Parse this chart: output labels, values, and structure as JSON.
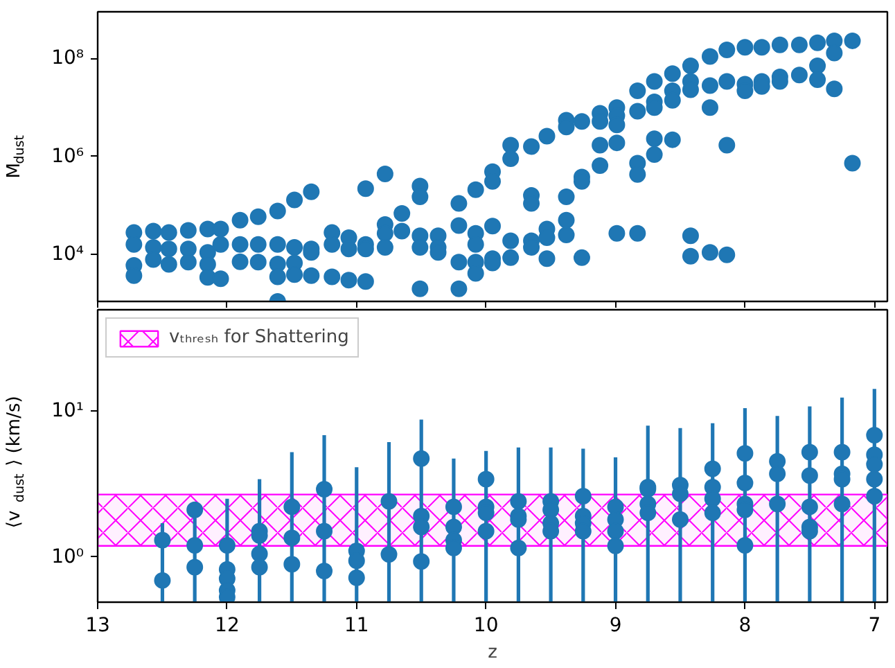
{
  "chart_data": [
    {
      "type": "scatter",
      "ylabel": "M$_{dust}$",
      "log": "y",
      "marker": "circle",
      "grid": false,
      "tick_labels": "y",
      "xlim": [
        13,
        6.9
      ],
      "xticks": [
        13,
        12,
        11,
        10,
        9,
        8,
        7
      ],
      "ylim": [
        1100,
        900000000
      ],
      "yticks": [
        {
          "value": 10000,
          "label": "10⁴"
        },
        {
          "value": 1000000,
          "label": "10⁶"
        },
        {
          "value": 100000000,
          "label": "10⁸"
        }
      ],
      "series": [
        {
          "color": "#1f77b4",
          "x": [
            12.72,
            12.72,
            12.72,
            12.72,
            12.57,
            12.57,
            12.57,
            12.45,
            12.45,
            12.45,
            12.3,
            12.3,
            12.3,
            12.15,
            12.15,
            12.15,
            12.15,
            12.05,
            12.05,
            12.05,
            11.9,
            11.9,
            11.9,
            11.76,
            11.76,
            11.76,
            11.61,
            11.61,
            11.61,
            11.61,
            11.61,
            11.48,
            11.48,
            11.48,
            11.48,
            11.35,
            11.35,
            11.35,
            11.35,
            11.19,
            11.19,
            11.19,
            11.06,
            11.06,
            11.06,
            10.93,
            10.93,
            10.93,
            10.93,
            10.78,
            10.78,
            10.78,
            10.78,
            10.65,
            10.65,
            10.51,
            10.51,
            10.51,
            10.51,
            10.51,
            10.37,
            10.37,
            10.37,
            10.21,
            10.21,
            10.21,
            10.21,
            10.08,
            10.08,
            10.08,
            10.08,
            10.08,
            9.95,
            9.95,
            9.95,
            9.95,
            9.95,
            9.81,
            9.81,
            9.81,
            9.81,
            9.65,
            9.65,
            9.65,
            9.65,
            9.65,
            9.53,
            9.53,
            9.53,
            9.53,
            9.38,
            9.38,
            9.38,
            9.38,
            9.38,
            9.26,
            9.26,
            9.26,
            9.26,
            9.12,
            9.12,
            9.12,
            9.12,
            8.99,
            8.99,
            8.99,
            8.99,
            8.99,
            8.83,
            8.83,
            8.83,
            8.83,
            8.83,
            8.7,
            8.7,
            8.7,
            8.7,
            8.7,
            8.56,
            8.56,
            8.56,
            8.56,
            8.42,
            8.42,
            8.42,
            8.42,
            8.42,
            8.27,
            8.27,
            8.27,
            8.27,
            8.14,
            8.14,
            8.14,
            8.14,
            8.0,
            8.0,
            8.0,
            7.87,
            7.87,
            7.87,
            7.73,
            7.73,
            7.73,
            7.58,
            7.58,
            7.44,
            7.44,
            7.44,
            7.31,
            7.31,
            7.31,
            7.17,
            7.17
          ],
          "values": [
            28000,
            16000,
            6000,
            3700,
            30000,
            14000,
            7900,
            28000,
            13000,
            6300,
            31000,
            13000,
            7000,
            33000,
            11000,
            6300,
            3400,
            33000,
            16000,
            3200,
            50000,
            16000,
            7100,
            59000,
            16000,
            7000,
            77000,
            16000,
            6400,
            3500,
            1100,
            130000,
            14000,
            6700,
            3900,
            190000,
            13000,
            11000,
            3700,
            28000,
            16000,
            3500,
            22000,
            13000,
            3000,
            220000,
            16000,
            13000,
            2800,
            440000,
            41000,
            27000,
            14000,
            69000,
            30000,
            250000,
            150000,
            24000,
            14000,
            2000,
            24000,
            14000,
            11000,
            110000,
            39000,
            7000,
            2000,
            210000,
            27000,
            16000,
            7000,
            4100,
            490000,
            310000,
            38000,
            8200,
            6700,
            1700000,
            900000,
            19000,
            8600,
            1600000,
            160000,
            110000,
            19000,
            14000,
            2600000,
            33000,
            22000,
            8200,
            5500000,
            4000000,
            150000,
            50000,
            25000,
            5200000,
            380000,
            310000,
            8600,
            7600000,
            5200000,
            1700000,
            650000,
            10000000,
            6800000,
            4400000,
            1900000,
            27000,
            22000000,
            8400000,
            730000,
            430000,
            27000,
            34000000,
            13000000,
            10000000,
            2300000,
            1100000,
            49000000,
            22000000,
            14000000,
            2200000,
            71000000,
            34000000,
            23000000,
            24000,
            9200,
            110000000,
            28000000,
            10000000,
            11000,
            150000000,
            34000000,
            1700000,
            9800,
            170000000,
            30000000,
            22000000,
            170000000,
            34000000,
            27000000,
            190000000,
            42000000,
            34000000,
            190000000,
            46000000,
            210000000,
            71000000,
            37000000,
            230000000,
            130000000,
            24000000,
            230000000,
            730000
          ]
        }
      ]
    },
    {
      "type": "scatter",
      "xlabel": "z",
      "ylabel": "⟨v$_{dust}$⟩ (km/s)",
      "log": "y",
      "marker": "circle",
      "grid": false,
      "legend": "top left",
      "xlim": [
        13,
        6.9
      ],
      "xticks": [
        13,
        12,
        11,
        10,
        9,
        8,
        7
      ],
      "ylim": [
        0.49,
        49
      ],
      "yticks": [
        {
          "value": 1,
          "label": "10⁰"
        },
        {
          "value": 10,
          "label": "10¹"
        }
      ],
      "bands": [
        {
          "axis": "y",
          "from": 1.19,
          "to": 2.67,
          "label": "vₜₕᵣₑₛₕ for Shattering",
          "color": "#ff00ff"
        }
      ],
      "series": [
        {
          "color": "#1f77b4",
          "x": [
            12.5,
            12.5,
            12.25,
            12.25,
            12.25,
            12.0,
            12.0,
            12.0,
            12.0,
            12.0,
            11.75,
            11.75,
            11.75,
            11.75,
            11.5,
            11.5,
            11.5,
            11.25,
            11.25,
            11.25,
            11.0,
            11.0,
            11.0,
            10.75,
            10.75,
            10.5,
            10.5,
            10.5,
            10.5,
            10.25,
            10.25,
            10.25,
            10.25,
            10.0,
            10.0,
            10.0,
            10.0,
            9.75,
            9.75,
            9.75,
            9.75,
            9.5,
            9.5,
            9.5,
            9.5,
            9.25,
            9.25,
            9.25,
            9.25,
            9.0,
            9.0,
            9.0,
            9.0,
            8.75,
            8.75,
            8.75,
            8.75,
            8.5,
            8.5,
            8.5,
            8.25,
            8.25,
            8.25,
            8.25,
            8.0,
            8.0,
            8.0,
            8.0,
            8.0,
            7.75,
            7.75,
            7.75,
            7.5,
            7.5,
            7.5,
            7.5,
            7.5,
            7.25,
            7.25,
            7.25,
            7.25,
            7.0,
            7.0,
            7.0,
            7.0,
            7.0
          ],
          "values": [
            1.3,
            0.69,
            2.1,
            1.2,
            0.85,
            1.2,
            0.82,
            0.71,
            0.59,
            0.53,
            1.5,
            1.4,
            1.05,
            0.85,
            2.2,
            1.35,
            0.89,
            2.9,
            1.5,
            0.8,
            1.1,
            0.94,
            0.72,
            2.4,
            1.04,
            4.7,
            1.9,
            1.6,
            0.93,
            2.2,
            1.6,
            1.3,
            1.15,
            3.4,
            2.2,
            2.0,
            1.5,
            2.4,
            1.9,
            1.8,
            1.15,
            2.4,
            2.1,
            1.7,
            1.5,
            2.6,
            1.9,
            1.7,
            1.5,
            2.2,
            1.8,
            1.5,
            1.19,
            3.0,
            2.9,
            2.3,
            2.0,
            3.1,
            2.7,
            1.8,
            4.0,
            3.0,
            2.5,
            2.0,
            5.1,
            3.2,
            2.3,
            2.1,
            1.2,
            4.5,
            3.7,
            2.3,
            5.2,
            3.6,
            2.2,
            1.6,
            1.5,
            5.2,
            3.7,
            3.4,
            2.3,
            6.8,
            5.0,
            4.3,
            3.4,
            2.6
          ],
          "errors": [
            [
              0.49,
              1.7
            ],
            null,
            [
              0.49,
              2.3
            ],
            null,
            null,
            [
              0.49,
              2.5
            ],
            null,
            null,
            null,
            null,
            [
              0.49,
              3.4
            ],
            null,
            null,
            null,
            [
              0.49,
              5.2
            ],
            null,
            null,
            [
              0.49,
              6.8
            ],
            null,
            null,
            [
              0.49,
              4.1
            ],
            null,
            null,
            [
              0.49,
              6.1
            ],
            null,
            [
              0.49,
              8.7
            ],
            null,
            null,
            null,
            [
              0.49,
              4.7
            ],
            null,
            null,
            null,
            [
              0.49,
              5.3
            ],
            null,
            null,
            null,
            [
              0.49,
              5.6
            ],
            null,
            null,
            null,
            [
              0.49,
              5.6
            ],
            null,
            null,
            null,
            [
              0.49,
              5.5
            ],
            null,
            null,
            null,
            [
              0.49,
              4.8
            ],
            null,
            null,
            null,
            [
              0.49,
              7.9
            ],
            null,
            null,
            null,
            [
              0.49,
              7.6
            ],
            null,
            null,
            [
              0.49,
              8.2
            ],
            null,
            null,
            null,
            [
              0.49,
              10.4
            ],
            null,
            null,
            null,
            null,
            [
              0.49,
              9.2
            ],
            null,
            null,
            [
              0.49,
              10.7
            ],
            null,
            null,
            null,
            null,
            [
              0.49,
              12.3
            ],
            null,
            null,
            null,
            [
              0.49,
              14.1
            ],
            null,
            null,
            null,
            null
          ]
        }
      ]
    }
  ]
}
